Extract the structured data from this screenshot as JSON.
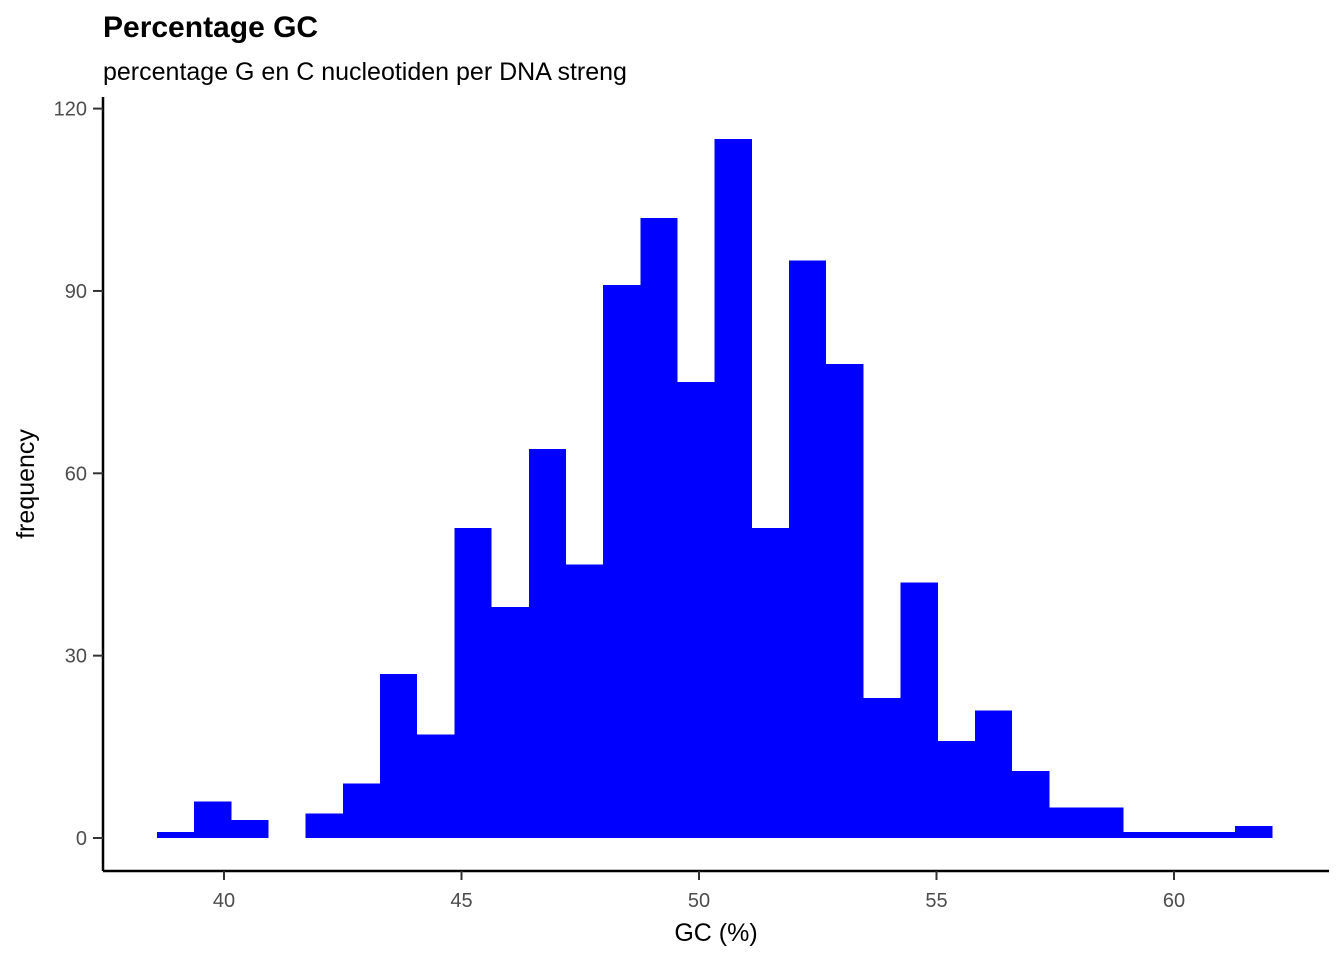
{
  "chart_data": {
    "type": "histogram",
    "title": "Percentage GC",
    "subtitle": "percentage G en C nucleotiden per DNA streng",
    "xlabel": "GC (%)",
    "ylabel": "frequency",
    "bin_start": 38.588,
    "bin_width": 0.7828,
    "counts": [
      1,
      6,
      3,
      0,
      4,
      9,
      27,
      17,
      51,
      38,
      64,
      45,
      91,
      102,
      75,
      115,
      51,
      95,
      78,
      23,
      42,
      16,
      21,
      11,
      5,
      5,
      1,
      1,
      1,
      2
    ],
    "x_ticks": [
      40,
      45,
      50,
      55,
      60
    ],
    "y_ticks": [
      0,
      30,
      60,
      90,
      120
    ],
    "xlim": [
      37.4,
      63.3
    ],
    "ylim": [
      0,
      120
    ],
    "grid": false,
    "legend": false,
    "bar_color": "#0000FF",
    "axis_line_color": "#000000",
    "tick_mark_color": "#333333",
    "axis_text_color": "#4D4D4D",
    "title_color": "#000000"
  }
}
